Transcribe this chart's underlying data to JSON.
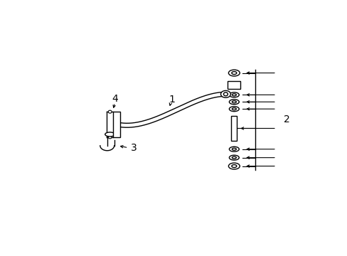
{
  "bg_color": "#ffffff",
  "line_color": "#000000",
  "fig_width": 4.89,
  "fig_height": 3.6,
  "dpi": 100,
  "label_1": "1",
  "label_2": "2",
  "label_3": "3",
  "label_4": "4",
  "label_fontsize": 10
}
